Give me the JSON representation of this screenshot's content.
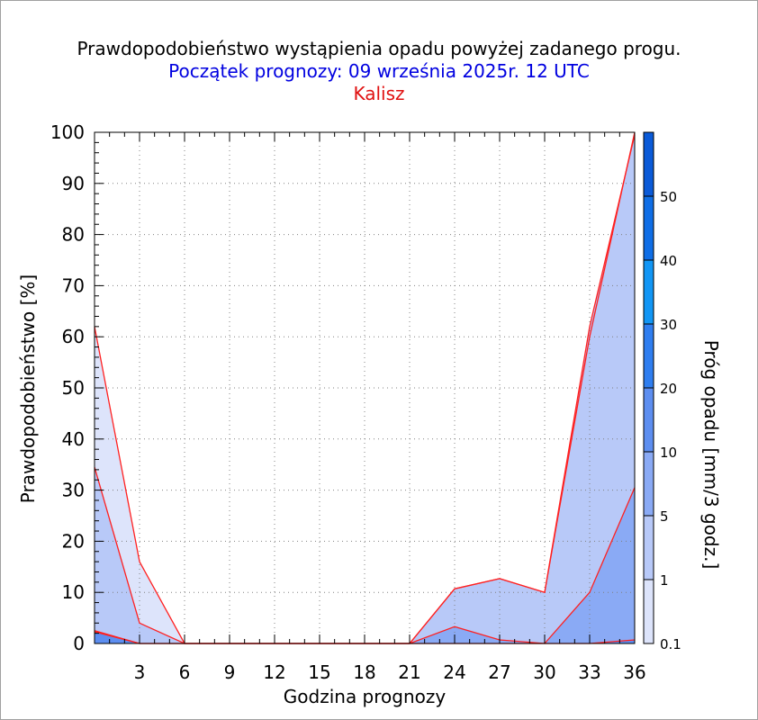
{
  "title": "Prawdopodobieństwo wystąpienia opadu powyżej zadanego progu.",
  "subtitle": "Początek prognozy: 09 września 2025r. 12 UTC",
  "location": "Kalisz",
  "colors": {
    "title": "#000000",
    "subtitle": "#0000e0",
    "location": "#e01010",
    "outline": "#ff2020",
    "levels": [
      "#dde4fb",
      "#b8c9f8",
      "#8aaaf5",
      "#5d8ef0",
      "#2f7ef0",
      "#1196f5",
      "#0f6ee6",
      "#0a5ad8",
      "#0848c4",
      "#0a3aa8"
    ]
  },
  "chart_data": {
    "type": "area",
    "xlabel": "Godzina prognozy",
    "ylabel": "Prawdopodobieństwo [%]",
    "colorbar_label": "Próg opadu [mm/3 godz.]",
    "x": [
      0,
      3,
      6,
      9,
      12,
      15,
      18,
      21,
      24,
      27,
      30,
      33,
      36
    ],
    "xticks": [
      "3",
      "6",
      "9",
      "12",
      "15",
      "18",
      "21",
      "24",
      "27",
      "30",
      "33",
      "36"
    ],
    "xlim": [
      0,
      36
    ],
    "ylim": [
      0,
      100
    ],
    "yticks": [
      "0",
      "10",
      "20",
      "30",
      "40",
      "50",
      "60",
      "70",
      "80",
      "90",
      "100"
    ],
    "grid": true,
    "series": [
      {
        "name": "0.1",
        "values": [
          62,
          16,
          0,
          0,
          0,
          0,
          0,
          0,
          10.7,
          12.7,
          10,
          60,
          100
        ]
      },
      {
        "name": "1",
        "values": [
          34.5,
          4,
          0,
          0,
          0,
          0,
          0,
          0,
          10.7,
          12.7,
          10,
          62,
          99.5
        ]
      },
      {
        "name": "5",
        "values": [
          2.5,
          0,
          0,
          0,
          0,
          0,
          0,
          0,
          3.3,
          0.7,
          0,
          10,
          30.5
        ]
      },
      {
        "name": "10",
        "values": [
          2.3,
          0,
          0,
          0,
          0,
          0,
          0,
          0,
          0,
          0,
          0,
          0,
          0.7
        ]
      }
    ],
    "colorbar_ticks": [
      "0.1",
      "1",
      "5",
      "10",
      "20",
      "30",
      "40",
      "50"
    ]
  }
}
